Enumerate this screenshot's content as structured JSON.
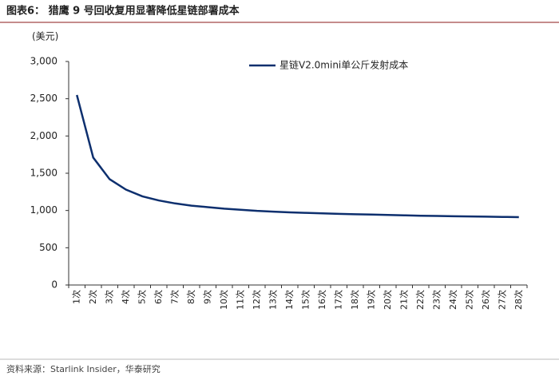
{
  "chart_data": {
    "type": "line",
    "title": "图表6： 猎鹰 9 号回收复用显著降低星链部署成本",
    "y_label": "(美元)",
    "source": "资料来源：Starlink Insider，华泰研究",
    "categories": [
      "1次",
      "2次",
      "3次",
      "4次",
      "5次",
      "6次",
      "7次",
      "8次",
      "9次",
      "10次",
      "11次",
      "12次",
      "13次",
      "14次",
      "15次",
      "16次",
      "17次",
      "18次",
      "19次",
      "20次",
      "21次",
      "22次",
      "23次",
      "24次",
      "25次",
      "26次",
      "27次",
      "28次"
    ],
    "series": [
      {
        "name": "星链V2.0mini单公斤发射成本",
        "color": "#0d2f6e",
        "values": [
          2550,
          1710,
          1420,
          1280,
          1190,
          1135,
          1095,
          1065,
          1045,
          1025,
          1010,
          995,
          985,
          975,
          968,
          962,
          955,
          950,
          945,
          940,
          935,
          930,
          927,
          923,
          920,
          917,
          914,
          911
        ]
      }
    ],
    "ylim": [
      0,
      3000
    ],
    "yticks": [
      0,
      500,
      {
        "value": 1000,
        "label": "1,000"
      },
      {
        "value": 1500,
        "label": "1,500"
      },
      {
        "value": 2000,
        "label": "2,000"
      },
      {
        "value": 2500,
        "label": "2,500"
      },
      {
        "value": 3000,
        "label": "3,000"
      }
    ],
    "grid": false,
    "legend": "top"
  }
}
